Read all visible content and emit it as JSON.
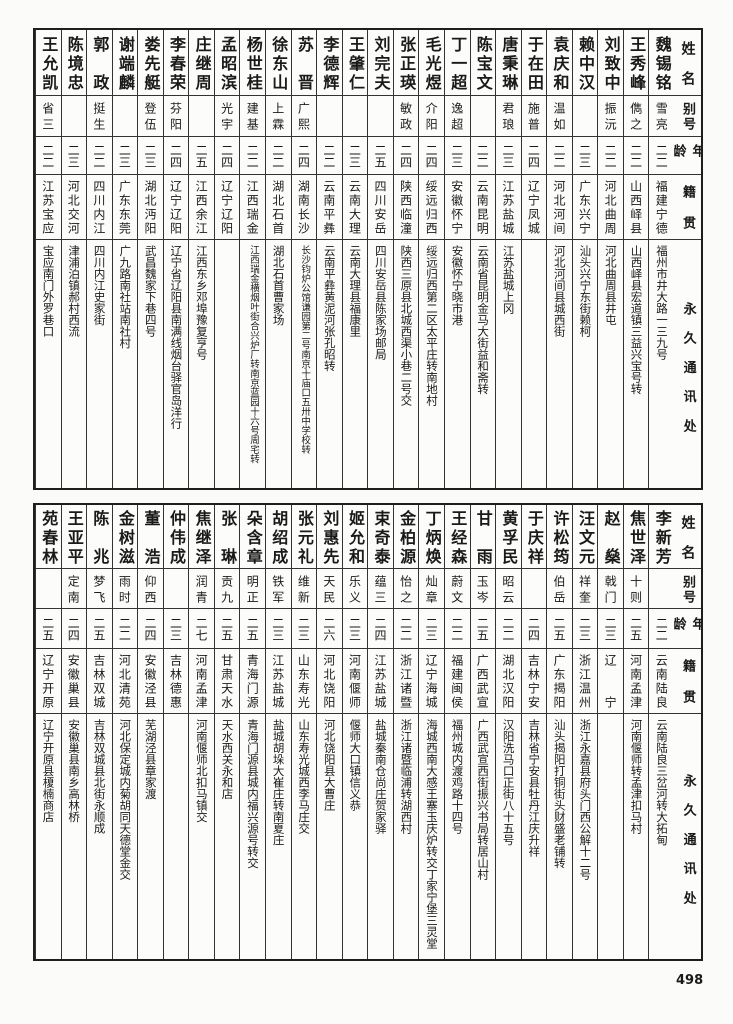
{
  "headers": {
    "name": "姓名",
    "alias": "别号",
    "age": "年龄",
    "native": "籍贯",
    "address": "永久通讯处"
  },
  "tables": [
    {
      "rows": [
        {
          "name": "魏锡铭",
          "alias": "雪亮",
          "age": "二二",
          "native": "福建宁德",
          "address": "福州市井大路一三九号"
        },
        {
          "name": "王秀峰",
          "alias": "儁之",
          "age": "二二",
          "native": "山西峄县",
          "address": "山西峄县宏道镇三益兴宝号转"
        },
        {
          "name": "刘致中",
          "alias": "振沅",
          "age": "二二",
          "native": "河北曲周",
          "address": "河北曲周县井屯"
        },
        {
          "name": "赖中汉",
          "alias": "",
          "age": "二三",
          "native": "广东兴宁",
          "address": "汕头兴宁东街赖柯"
        },
        {
          "name": "袁庆和",
          "alias": "温如",
          "age": "二二",
          "native": "河北河间",
          "address": "河北河间县城西街"
        },
        {
          "name": "于在田",
          "alias": "施普",
          "age": "二四",
          "native": "辽宁凤城",
          "address": ""
        },
        {
          "name": "唐秉琳",
          "alias": "君琅",
          "age": "二三",
          "native": "江苏盐城",
          "address": "江苏盐城上冈"
        },
        {
          "name": "陈宝文",
          "alias": "",
          "age": "二二",
          "native": "云南昆明",
          "address": "云南省昆明金马大街益和斋转"
        },
        {
          "name": "丁一超",
          "alias": "逸超",
          "age": "二三",
          "native": "安徽怀宁",
          "address": "安徽怀宁晓市港"
        },
        {
          "name": "毛光煜",
          "alias": "介阳",
          "age": "二四",
          "native": "绥远归西",
          "address": "绥远归西第二区太平庄转南地村"
        },
        {
          "name": "张正瑛",
          "alias": "敏政",
          "age": "二四",
          "native": "陕西临潼",
          "address": "陕西三原县北城西渠小巷二号交"
        },
        {
          "name": "刘完夫",
          "alias": "",
          "age": "二五",
          "native": "四川安岳",
          "address": "四川安岳县陈家场邮局"
        },
        {
          "name": "王肇仁",
          "alias": "",
          "age": "二三",
          "native": "云南大理",
          "address": "云南大理县福康里"
        },
        {
          "name": "李德辉",
          "alias": "",
          "age": "二二",
          "native": "云南平彝",
          "address": "云南平彝黄泥河张孔昭转"
        },
        {
          "name": "苏晋",
          "alias": "广熙",
          "age": "二四",
          "native": "湖南长沙",
          "address": "长沙钧炉公馆谦园第二号南京十庙口五卅中学校转"
        },
        {
          "name": "徐东山",
          "alias": "上霖",
          "age": "二二",
          "native": "湖北石首",
          "address": "湖北石首曹家场"
        },
        {
          "name": "杨世桂",
          "alias": "建基",
          "age": "二二",
          "native": "江西瑞金",
          "address": "江西瑞金横烟叶街合兴炉厂转南京蓝园十六号周宅转"
        },
        {
          "name": "孟昭滨",
          "alias": "光宇",
          "age": "二四",
          "native": "辽宁辽阳",
          "address": ""
        },
        {
          "name": "庄继周",
          "alias": "",
          "age": "二五",
          "native": "江西余江",
          "address": "江西东乡邓埠豫复亨号"
        },
        {
          "name": "李春荣",
          "alias": "芬阳",
          "age": "二四",
          "native": "辽宁辽阳",
          "address": "辽宁省辽阳县南满线烟台驿官岛洋行"
        },
        {
          "name": "娄先艇",
          "alias": "登伍",
          "age": "二三",
          "native": "湖北沔阳",
          "address": "武昌魏家下巷四号"
        },
        {
          "name": "谢端麟",
          "alias": "",
          "age": "二三",
          "native": "广东东莞",
          "address": "广九路南社站南社村"
        },
        {
          "name": "郭政",
          "alias": "挺生",
          "age": "二二",
          "native": "四川内江",
          "address": "四川内江史家街"
        },
        {
          "name": "陈境忠",
          "alias": "",
          "age": "二三",
          "native": "河北交河",
          "address": "津浦泊镇郝村西流"
        },
        {
          "name": "王允凯",
          "alias": "省三",
          "age": "二二",
          "native": "江苏宝应",
          "address": "宝应南门外罗巷口"
        }
      ]
    },
    {
      "rows": [
        {
          "name": "李新芳",
          "alias": "",
          "age": "二二",
          "native": "云南陆良",
          "address": "云南陆良三岔河转大拓甸"
        },
        {
          "name": "焦世泽",
          "alias": "十则",
          "age": "二五",
          "native": "河南孟津",
          "address": "河南偃师转孟津扣马村"
        },
        {
          "name": "赵燊",
          "alias": "戟门",
          "age": "二三",
          "native": "辽宁",
          "address": ""
        },
        {
          "name": "汪文元",
          "alias": "祥奎",
          "age": "二三",
          "native": "浙江温州",
          "address": "浙江永嘉县府头门西公解十二号"
        },
        {
          "name": "许松筠",
          "alias": "伯岳",
          "age": "二五",
          "native": "广东揭阳",
          "address": "汕头揭阳打铜街头财盛老铺转"
        },
        {
          "name": "于庆祥",
          "alias": "",
          "age": "二四",
          "native": "吉林宁安",
          "address": "吉林省宁安县牡丹江庆升祥"
        },
        {
          "name": "黄孚民",
          "alias": "昭云",
          "age": "二二",
          "native": "湖北汉阳",
          "address": "汉阳洗马口正街八十五号"
        },
        {
          "name": "甘雨",
          "alias": "玉岑",
          "age": "二五",
          "native": "广西武宣",
          "address": "广西武宣西街振兴书局转居山村"
        },
        {
          "name": "王经森",
          "alias": "蔚文",
          "age": "二二",
          "native": "福建闽侯",
          "address": "福州城内渡鸡路十四号"
        },
        {
          "name": "丁炳焕",
          "alias": "灿章",
          "age": "二三",
          "native": "辽宁海城",
          "address": "海城西南大感王寨玉庆炉转交丁家宁堡三灵堂"
        },
        {
          "name": "金柏源",
          "alias": "怡之",
          "age": "二二",
          "native": "浙江诸暨",
          "address": "浙江诸暨临浦转湖西村"
        },
        {
          "name": "束奇泰",
          "alias": "蕴三",
          "age": "二四",
          "native": "江苏盐城",
          "address": "盐城秦南仓尚庄贺家驿"
        },
        {
          "name": "姬允和",
          "alias": "乐义",
          "age": "二三",
          "native": "河南偃师",
          "address": "偃师大口镇信义恭"
        },
        {
          "name": "刘惠先",
          "alias": "天民",
          "age": "二六",
          "native": "河北饶阳",
          "address": "河北饶阳县大曹庄"
        },
        {
          "name": "张元礼",
          "alias": "维新",
          "age": "二三",
          "native": "山东寿光",
          "address": "山东寿光城西李马庄交"
        },
        {
          "name": "胡绍成",
          "alias": "铁军",
          "age": "二三",
          "native": "江苏盐城",
          "address": "盐城胡垛大崔庄转南夏庄"
        },
        {
          "name": "朵含章",
          "alias": "明正",
          "age": "二五",
          "native": "青海门源",
          "address": "青海门源县城内福兴源号转交"
        },
        {
          "name": "张琳",
          "alias": "贡九",
          "age": "二五",
          "native": "甘肃天水",
          "address": "天水西关永和店"
        },
        {
          "name": "焦继泽",
          "alias": "润青",
          "age": "二七",
          "native": "河南孟津",
          "address": "河南偃师北扣马镇交"
        },
        {
          "name": "仲伟成",
          "alias": "",
          "age": "二三",
          "native": "吉林德惠",
          "address": ""
        },
        {
          "name": "董浩",
          "alias": "仰西",
          "age": "二四",
          "native": "安徽泾县",
          "address": "芜湖泾县章家渡"
        },
        {
          "name": "金树滋",
          "alias": "雨时",
          "age": "二二",
          "native": "河北清苑",
          "address": "河北保定城内菊胡同天德堂金交"
        },
        {
          "name": "陈兆",
          "alias": "梦飞",
          "age": "二五",
          "native": "吉林双城",
          "address": "吉林双城县北街永顺成"
        },
        {
          "name": "王亚平",
          "alias": "定南",
          "age": "二四",
          "native": "安徽巢县",
          "address": "安徽巢县南乡高林桥"
        },
        {
          "name": "苑春林",
          "alias": "",
          "age": "二五",
          "native": "辽宁开原",
          "address": "辽宁开原县榎楠商店"
        }
      ]
    }
  ],
  "page_number": "498"
}
